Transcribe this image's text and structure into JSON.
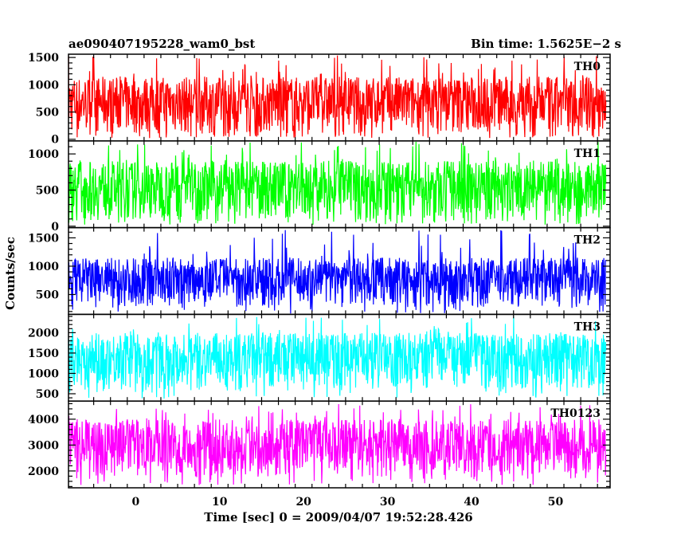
{
  "header": {
    "title": "ae090407195228_wam0_bst",
    "bin_time": "Bin time: 1.5625E−2 s"
  },
  "chart_data": {
    "type": "line",
    "title": "ae090407195228_wam0_bst",
    "subtitle": "Bin time: 1.5625E−2 s",
    "xlabel": "Time [sec] 0 = 2009/04/07 19:52:28.426",
    "ylabel": "Counts/sec",
    "xlim": [
      -8,
      56.5
    ],
    "x_range_data": [
      -8,
      56
    ],
    "bin_time_s": 0.015625,
    "x_ticks": [
      0,
      10,
      20,
      30,
      40,
      50
    ],
    "x_tick_labels": [
      "0",
      "10",
      "20",
      "30",
      "40",
      "50"
    ],
    "grid": false,
    "panels": [
      {
        "name": "TH0",
        "color": "#ff0000",
        "ylim": [
          -30,
          1560
        ],
        "y_ticks": [
          0,
          500,
          1000,
          1500
        ],
        "y_tick_labels": [
          "0",
          "500",
          "1000",
          "1500"
        ],
        "typical_low": 80,
        "typical_high": 1150,
        "min": 20,
        "max": 1550
      },
      {
        "name": "TH1",
        "color": "#00ff00",
        "ylim": [
          -20,
          1180
        ],
        "y_ticks": [
          0,
          500,
          1000
        ],
        "y_tick_labels": [
          "0",
          "500",
          "1000"
        ],
        "typical_low": 70,
        "typical_high": 900,
        "min": 20,
        "max": 1170
      },
      {
        "name": "TH2",
        "color": "#0000ff",
        "ylim": [
          150,
          1680
        ],
        "y_ticks": [
          500,
          1000,
          1500
        ],
        "y_tick_labels": [
          "500",
          "1000",
          "1500"
        ],
        "typical_low": 280,
        "typical_high": 1150,
        "min": 160,
        "max": 1650
      },
      {
        "name": "TH3",
        "color": "#00ffff",
        "ylim": [
          320,
          2450
        ],
        "y_ticks": [
          500,
          1000,
          1500,
          2000
        ],
        "y_tick_labels": [
          "500",
          "1000",
          "1500",
          "2000"
        ],
        "typical_low": 600,
        "typical_high": 2000,
        "min": 380,
        "max": 2420
      },
      {
        "name": "TH0123",
        "color": "#ff00ff",
        "ylim": [
          1350,
          4700
        ],
        "y_ticks": [
          2000,
          3000,
          4000
        ],
        "y_tick_labels": [
          "2000",
          "3000",
          "4000"
        ],
        "typical_low": 1800,
        "typical_high": 4000,
        "min": 1450,
        "max": 4600
      }
    ]
  }
}
